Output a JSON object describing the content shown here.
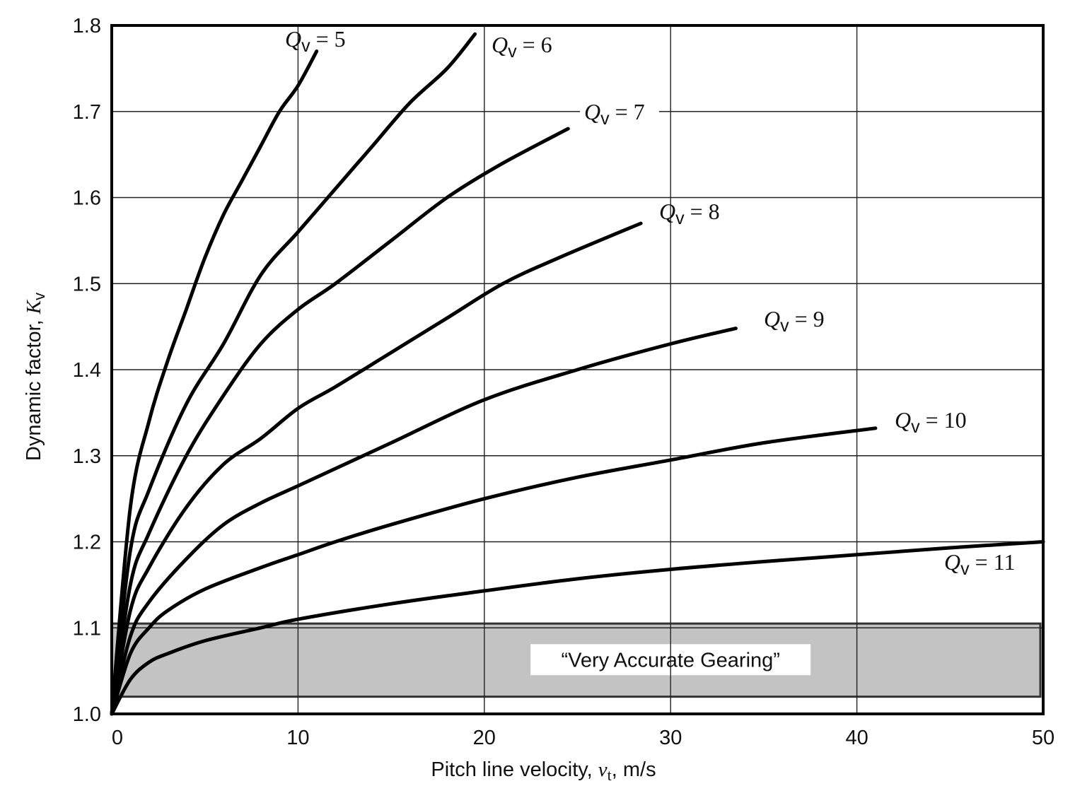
{
  "chart_data": {
    "type": "line",
    "title": "",
    "xlabel": {
      "prefix": "Pitch line velocity, ",
      "var": "v",
      "sub": "t",
      "suffix": ", m/s"
    },
    "ylabel": {
      "prefix": "Dynamic factor, ",
      "var": "K",
      "sub": "v"
    },
    "xlim": [
      0,
      50
    ],
    "ylim": [
      1.0,
      1.8
    ],
    "xticks": [
      "0",
      "10",
      "20",
      "30",
      "40",
      "50"
    ],
    "yticks": [
      "1.0",
      "1.1",
      "1.2",
      "1.3",
      "1.4",
      "1.5",
      "1.6",
      "1.7",
      "1.8"
    ],
    "grid": true,
    "series": [
      {
        "name": "Qv = 5",
        "label": {
          "var": "Q",
          "sub": "v",
          "rest": " = 5"
        },
        "x": [
          0,
          1,
          2,
          3,
          4,
          5,
          6,
          7,
          8,
          9,
          10,
          11
        ],
        "y": [
          1.0,
          1.24,
          1.34,
          1.41,
          1.47,
          1.53,
          1.58,
          1.62,
          1.66,
          1.7,
          1.73,
          1.77
        ]
      },
      {
        "name": "Qv = 6",
        "label": {
          "var": "Q",
          "sub": "v",
          "rest": " = 6"
        },
        "x": [
          0,
          1,
          2,
          4,
          6,
          8,
          10,
          12,
          14,
          16,
          18,
          19.5
        ],
        "y": [
          1.0,
          1.19,
          1.26,
          1.36,
          1.43,
          1.51,
          1.56,
          1.61,
          1.66,
          1.71,
          1.75,
          1.79
        ]
      },
      {
        "name": "Qv = 7",
        "label": {
          "var": "Q",
          "sub": "v",
          "rest": " = 7"
        },
        "x": [
          0,
          1,
          2,
          4,
          6,
          8,
          10,
          12,
          15,
          18,
          21,
          24.5
        ],
        "y": [
          1.0,
          1.15,
          1.21,
          1.3,
          1.37,
          1.43,
          1.47,
          1.5,
          1.55,
          1.6,
          1.64,
          1.68
        ]
      },
      {
        "name": "Qv = 8",
        "label": {
          "var": "Q",
          "sub": "v",
          "rest": " = 8"
        },
        "x": [
          0,
          1,
          2,
          4,
          6,
          8,
          10,
          12,
          15,
          18,
          21,
          24,
          28.4
        ],
        "y": [
          1.0,
          1.12,
          1.17,
          1.24,
          1.29,
          1.32,
          1.355,
          1.38,
          1.42,
          1.46,
          1.5,
          1.53,
          1.57
        ]
      },
      {
        "name": "Qv = 9",
        "label": {
          "var": "Q",
          "sub": "v",
          "rest": " = 9"
        },
        "x": [
          0,
          1,
          2,
          4,
          6,
          8,
          10,
          12,
          15,
          20,
          25,
          30,
          33.5
        ],
        "y": [
          1.0,
          1.09,
          1.13,
          1.18,
          1.22,
          1.245,
          1.265,
          1.285,
          1.315,
          1.365,
          1.4,
          1.43,
          1.448
        ]
      },
      {
        "name": "Qv = 10",
        "label": {
          "var": "Q",
          "sub": "v",
          "rest": " = 10"
        },
        "x": [
          0,
          1,
          2,
          3,
          5,
          8,
          10,
          12,
          15,
          20,
          25,
          30,
          35,
          41
        ],
        "y": [
          1.0,
          1.07,
          1.1,
          1.12,
          1.145,
          1.17,
          1.185,
          1.2,
          1.22,
          1.25,
          1.275,
          1.295,
          1.315,
          1.332
        ]
      },
      {
        "name": "Qv = 11",
        "label": {
          "var": "Q",
          "sub": "v",
          "rest": " = 11"
        },
        "x": [
          0,
          1,
          2,
          3,
          5,
          8,
          10,
          15,
          20,
          25,
          30,
          35,
          40,
          45,
          50
        ],
        "y": [
          1.0,
          1.04,
          1.06,
          1.07,
          1.085,
          1.1,
          1.11,
          1.128,
          1.143,
          1.157,
          1.168,
          1.177,
          1.185,
          1.193,
          1.2
        ]
      }
    ],
    "annotations": [
      {
        "text": "“Very Accurate Gearing”",
        "region": {
          "x": [
            0,
            50
          ],
          "y": [
            1.02,
            1.105
          ]
        },
        "fill": "#c3c3c3"
      }
    ]
  }
}
